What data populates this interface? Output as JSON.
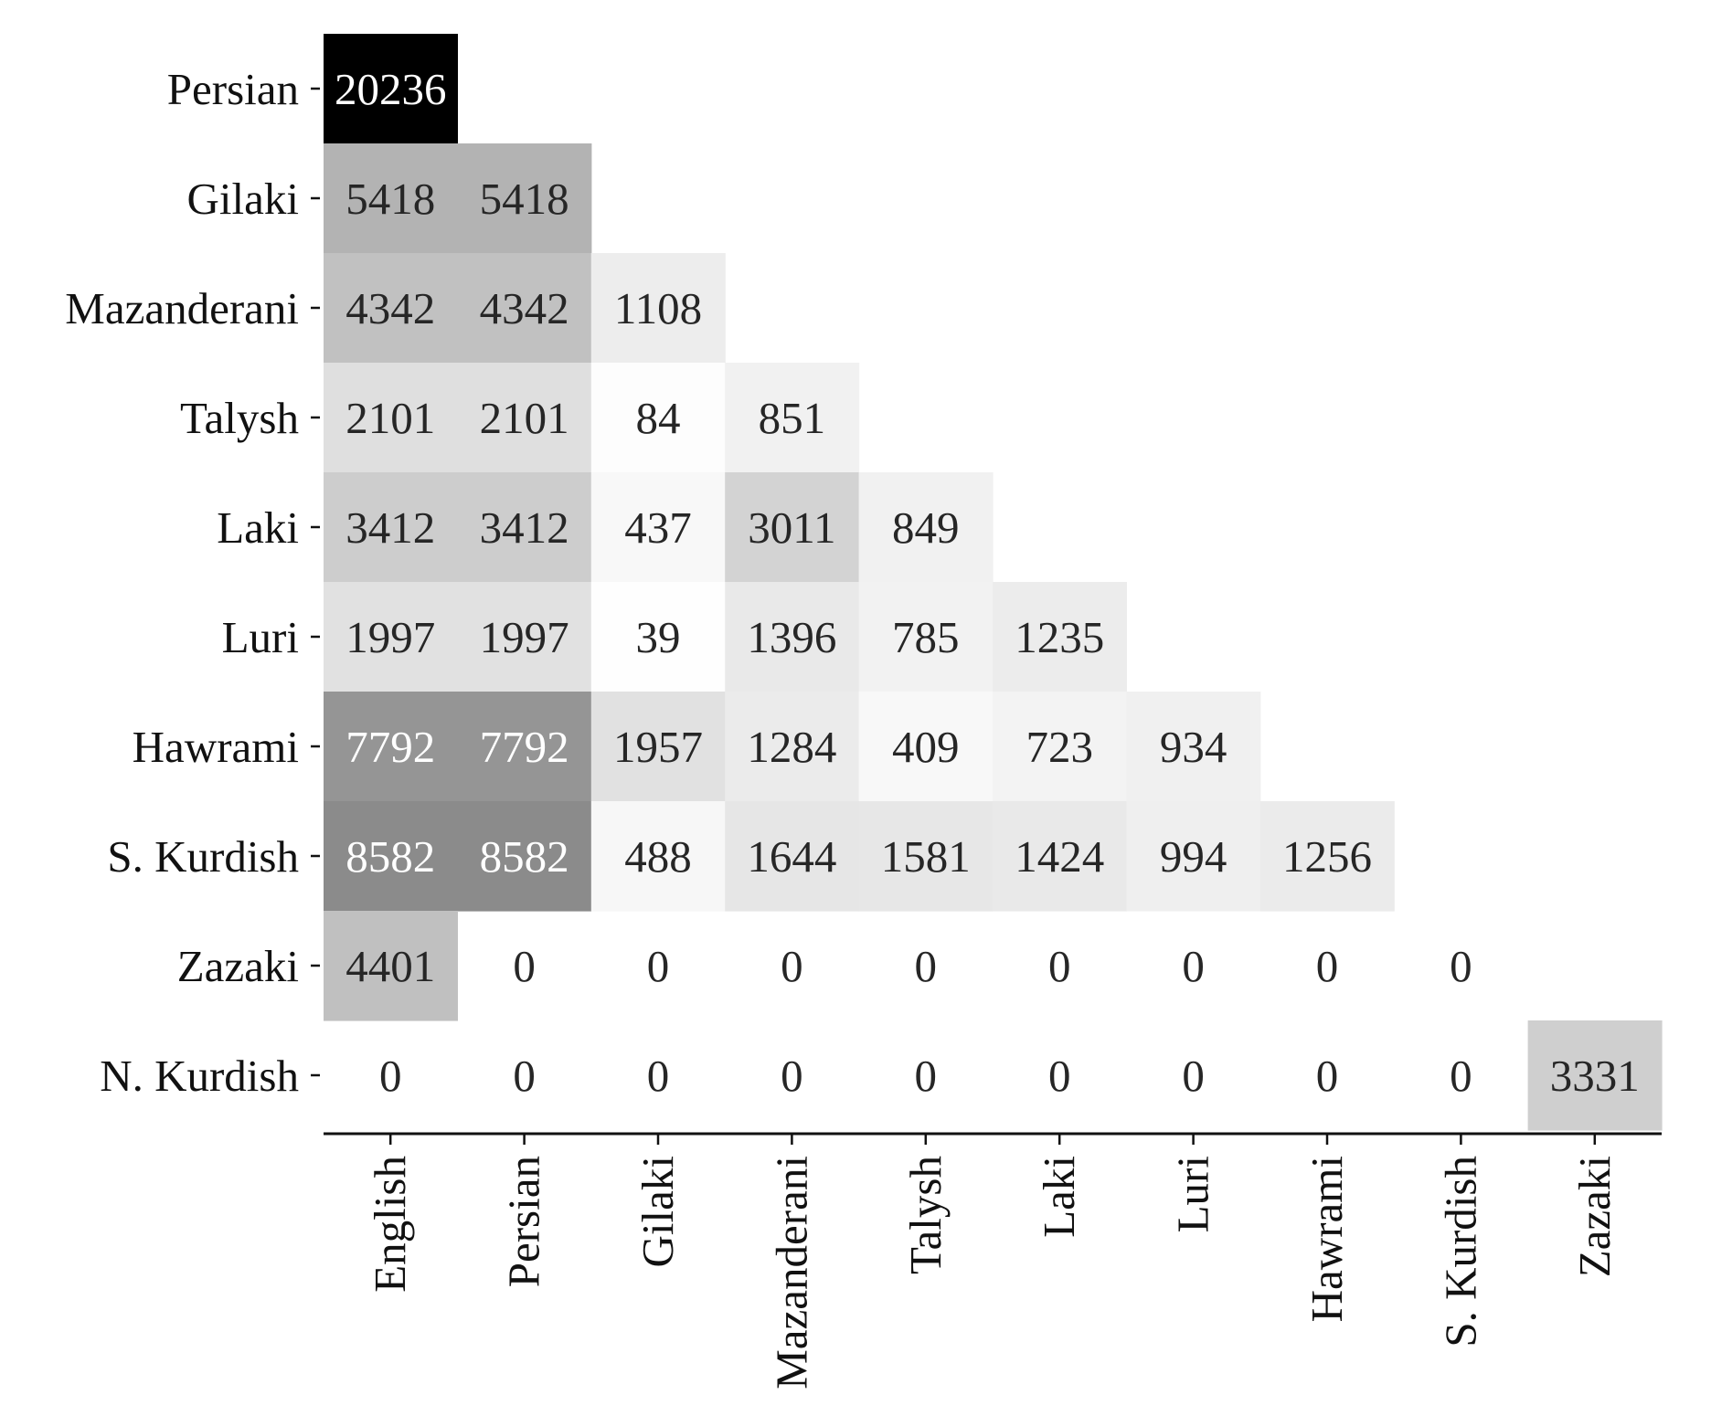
{
  "chart_data": {
    "type": "heatmap",
    "colormap": "Greys",
    "row_labels": [
      "Persian",
      "Gilaki",
      "Mazanderani",
      "Talysh",
      "Laki",
      "Luri",
      "Hawrami",
      "S. Kurdish",
      "Zazaki",
      "N. Kurdish"
    ],
    "col_labels": [
      "English",
      "Persian",
      "Gilaki",
      "Mazanderani",
      "Talysh",
      "Laki",
      "Luri",
      "Hawrami",
      "S. Kurdish",
      "Zazaki"
    ],
    "values": [
      [
        20236,
        null,
        null,
        null,
        null,
        null,
        null,
        null,
        null,
        null
      ],
      [
        5418,
        5418,
        null,
        null,
        null,
        null,
        null,
        null,
        null,
        null
      ],
      [
        4342,
        4342,
        1108,
        null,
        null,
        null,
        null,
        null,
        null,
        null
      ],
      [
        2101,
        2101,
        84,
        851,
        null,
        null,
        null,
        null,
        null,
        null
      ],
      [
        3412,
        3412,
        437,
        3011,
        849,
        null,
        null,
        null,
        null,
        null
      ],
      [
        1997,
        1997,
        39,
        1396,
        785,
        1235,
        null,
        null,
        null,
        null
      ],
      [
        7792,
        7792,
        1957,
        1284,
        409,
        723,
        934,
        null,
        null,
        null
      ],
      [
        8582,
        8582,
        488,
        1644,
        1581,
        1424,
        994,
        1256,
        null,
        null
      ],
      [
        4401,
        0,
        0,
        0,
        0,
        0,
        0,
        0,
        0,
        null
      ],
      [
        0,
        0,
        0,
        0,
        0,
        0,
        0,
        0,
        0,
        3331
      ]
    ],
    "vmin": 0,
    "vmax": 20236,
    "annotated": true,
    "grid": false,
    "legend": "none"
  }
}
